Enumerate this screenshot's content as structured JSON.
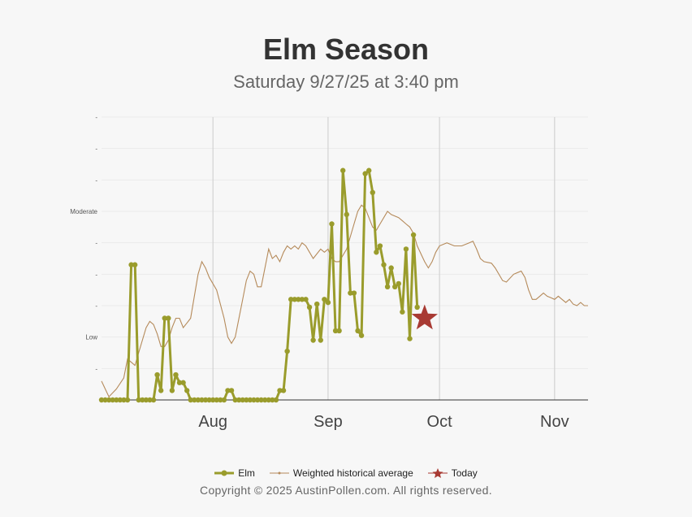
{
  "header": {
    "title": "Elm Season",
    "subtitle": "Saturday 9/27/25 at 3:40 pm"
  },
  "chart_data": {
    "type": "line",
    "x_axis": {
      "labels": [
        "Aug",
        "Sep",
        "Oct",
        "Nov"
      ],
      "label_dates": [
        "2025-08-01",
        "2025-09-01",
        "2025-10-01",
        "2025-11-01"
      ],
      "range": [
        "2025-07-02",
        "2025-11-10"
      ]
    },
    "y_axis": {
      "range": [
        0,
        9
      ],
      "tick_labels": [
        {
          "value": 1,
          "label": "-"
        },
        {
          "value": 2,
          "label": "Low"
        },
        {
          "value": 3,
          "label": "-"
        },
        {
          "value": 4,
          "label": "-"
        },
        {
          "value": 5,
          "label": "-"
        },
        {
          "value": 6,
          "label": "Moderate"
        },
        {
          "value": 7,
          "label": "-"
        },
        {
          "value": 8,
          "label": "-"
        },
        {
          "value": 9,
          "label": "-"
        }
      ]
    },
    "grid": true,
    "legend_position": "bottom",
    "series": [
      {
        "name": "Elm",
        "color": "#9a9c2c",
        "points": [
          [
            "2025-07-02",
            0
          ],
          [
            "2025-07-03",
            0
          ],
          [
            "2025-07-04",
            0
          ],
          [
            "2025-07-05",
            0
          ],
          [
            "2025-07-06",
            0
          ],
          [
            "2025-07-07",
            0
          ],
          [
            "2025-07-08",
            0
          ],
          [
            "2025-07-09",
            0
          ],
          [
            "2025-07-10",
            4.3
          ],
          [
            "2025-07-11",
            4.3
          ],
          [
            "2025-07-12",
            0
          ],
          [
            "2025-07-13",
            0
          ],
          [
            "2025-07-14",
            0
          ],
          [
            "2025-07-15",
            0
          ],
          [
            "2025-07-16",
            0
          ],
          [
            "2025-07-17",
            0.8
          ],
          [
            "2025-07-18",
            0.3
          ],
          [
            "2025-07-19",
            2.6
          ],
          [
            "2025-07-20",
            2.6
          ],
          [
            "2025-07-21",
            0.3
          ],
          [
            "2025-07-22",
            0.8
          ],
          [
            "2025-07-23",
            0.55
          ],
          [
            "2025-07-24",
            0.55
          ],
          [
            "2025-07-25",
            0.3
          ],
          [
            "2025-07-26",
            0
          ],
          [
            "2025-07-27",
            0
          ],
          [
            "2025-07-28",
            0
          ],
          [
            "2025-07-29",
            0
          ],
          [
            "2025-07-30",
            0
          ],
          [
            "2025-07-31",
            0
          ],
          [
            "2025-08-01",
            0
          ],
          [
            "2025-08-02",
            0
          ],
          [
            "2025-08-03",
            0
          ],
          [
            "2025-08-04",
            0
          ],
          [
            "2025-08-05",
            0.3
          ],
          [
            "2025-08-06",
            0.3
          ],
          [
            "2025-08-07",
            0
          ],
          [
            "2025-08-08",
            0
          ],
          [
            "2025-08-09",
            0
          ],
          [
            "2025-08-10",
            0
          ],
          [
            "2025-08-11",
            0
          ],
          [
            "2025-08-12",
            0
          ],
          [
            "2025-08-13",
            0
          ],
          [
            "2025-08-14",
            0
          ],
          [
            "2025-08-15",
            0
          ],
          [
            "2025-08-16",
            0
          ],
          [
            "2025-08-17",
            0
          ],
          [
            "2025-08-18",
            0
          ],
          [
            "2025-08-19",
            0.3
          ],
          [
            "2025-08-20",
            0.3
          ],
          [
            "2025-08-21",
            1.55
          ],
          [
            "2025-08-22",
            3.2
          ],
          [
            "2025-08-23",
            3.2
          ],
          [
            "2025-08-24",
            3.2
          ],
          [
            "2025-08-25",
            3.2
          ],
          [
            "2025-08-26",
            3.2
          ],
          [
            "2025-08-27",
            2.95
          ],
          [
            "2025-08-28",
            1.9
          ],
          [
            "2025-08-29",
            3.05
          ],
          [
            "2025-08-30",
            1.9
          ],
          [
            "2025-08-31",
            3.2
          ],
          [
            "2025-09-01",
            3.1
          ],
          [
            "2025-09-02",
            5.6
          ],
          [
            "2025-09-03",
            2.2
          ],
          [
            "2025-09-04",
            2.2
          ],
          [
            "2025-09-05",
            7.3
          ],
          [
            "2025-09-06",
            5.9
          ],
          [
            "2025-09-07",
            3.4
          ],
          [
            "2025-09-08",
            3.4
          ],
          [
            "2025-09-09",
            2.2
          ],
          [
            "2025-09-10",
            2.05
          ],
          [
            "2025-09-11",
            7.2
          ],
          [
            "2025-09-12",
            7.3
          ],
          [
            "2025-09-13",
            6.6
          ],
          [
            "2025-09-14",
            4.7
          ],
          [
            "2025-09-15",
            4.9
          ],
          [
            "2025-09-16",
            4.3
          ],
          [
            "2025-09-17",
            3.6
          ],
          [
            "2025-09-18",
            4.2
          ],
          [
            "2025-09-19",
            3.6
          ],
          [
            "2025-09-20",
            3.7
          ],
          [
            "2025-09-21",
            2.8
          ],
          [
            "2025-09-22",
            4.8
          ],
          [
            "2025-09-23",
            1.95
          ],
          [
            "2025-09-24",
            5.25
          ],
          [
            "2025-09-25",
            2.95
          ]
        ]
      },
      {
        "name": "Weighted historical average",
        "color": "#b58a5a",
        "points": [
          [
            "2025-07-02",
            0.6
          ],
          [
            "2025-07-04",
            0.1
          ],
          [
            "2025-07-06",
            0.35
          ],
          [
            "2025-07-08",
            0.7
          ],
          [
            "2025-07-09",
            1.3
          ],
          [
            "2025-07-10",
            1.2
          ],
          [
            "2025-07-11",
            1.1
          ],
          [
            "2025-07-12",
            1.5
          ],
          [
            "2025-07-13",
            1.9
          ],
          [
            "2025-07-14",
            2.3
          ],
          [
            "2025-07-15",
            2.5
          ],
          [
            "2025-07-16",
            2.4
          ],
          [
            "2025-07-17",
            2.1
          ],
          [
            "2025-07-18",
            1.7
          ],
          [
            "2025-07-19",
            1.7
          ],
          [
            "2025-07-20",
            1.9
          ],
          [
            "2025-07-21",
            2.3
          ],
          [
            "2025-07-22",
            2.6
          ],
          [
            "2025-07-23",
            2.6
          ],
          [
            "2025-07-24",
            2.3
          ],
          [
            "2025-07-25",
            2.45
          ],
          [
            "2025-07-26",
            2.6
          ],
          [
            "2025-07-27",
            3.3
          ],
          [
            "2025-07-28",
            4.0
          ],
          [
            "2025-07-29",
            4.4
          ],
          [
            "2025-07-30",
            4.2
          ],
          [
            "2025-07-31",
            3.9
          ],
          [
            "2025-08-02",
            3.5
          ],
          [
            "2025-08-04",
            2.6
          ],
          [
            "2025-08-05",
            2.0
          ],
          [
            "2025-08-06",
            1.8
          ],
          [
            "2025-08-07",
            2.0
          ],
          [
            "2025-08-08",
            2.6
          ],
          [
            "2025-08-09",
            3.2
          ],
          [
            "2025-08-10",
            3.8
          ],
          [
            "2025-08-11",
            4.1
          ],
          [
            "2025-08-12",
            4.0
          ],
          [
            "2025-08-13",
            3.6
          ],
          [
            "2025-08-14",
            3.6
          ],
          [
            "2025-08-15",
            4.2
          ],
          [
            "2025-08-16",
            4.8
          ],
          [
            "2025-08-17",
            4.5
          ],
          [
            "2025-08-18",
            4.6
          ],
          [
            "2025-08-19",
            4.4
          ],
          [
            "2025-08-20",
            4.7
          ],
          [
            "2025-08-21",
            4.9
          ],
          [
            "2025-08-22",
            4.8
          ],
          [
            "2025-08-23",
            4.9
          ],
          [
            "2025-08-24",
            4.8
          ],
          [
            "2025-08-25",
            5.0
          ],
          [
            "2025-08-26",
            4.9
          ],
          [
            "2025-08-27",
            4.7
          ],
          [
            "2025-08-28",
            4.5
          ],
          [
            "2025-08-30",
            4.8
          ],
          [
            "2025-08-31",
            4.7
          ],
          [
            "2025-09-01",
            4.8
          ],
          [
            "2025-09-02",
            4.5
          ],
          [
            "2025-09-03",
            4.4
          ],
          [
            "2025-09-04",
            4.4
          ],
          [
            "2025-09-05",
            4.6
          ],
          [
            "2025-09-06",
            4.8
          ],
          [
            "2025-09-07",
            5.2
          ],
          [
            "2025-09-08",
            5.6
          ],
          [
            "2025-09-09",
            6.0
          ],
          [
            "2025-09-10",
            6.2
          ],
          [
            "2025-09-11",
            6.1
          ],
          [
            "2025-09-12",
            5.8
          ],
          [
            "2025-09-13",
            5.5
          ],
          [
            "2025-09-14",
            5.4
          ],
          [
            "2025-09-15",
            5.6
          ],
          [
            "2025-09-17",
            6.0
          ],
          [
            "2025-09-18",
            5.9
          ],
          [
            "2025-09-20",
            5.8
          ],
          [
            "2025-09-21",
            5.7
          ],
          [
            "2025-09-22",
            5.6
          ],
          [
            "2025-09-23",
            5.5
          ],
          [
            "2025-09-24",
            5.3
          ],
          [
            "2025-09-25",
            4.9
          ],
          [
            "2025-09-27",
            4.4
          ],
          [
            "2025-09-28",
            4.2
          ],
          [
            "2025-09-29",
            4.4
          ],
          [
            "2025-09-30",
            4.7
          ],
          [
            "2025-10-01",
            4.9
          ],
          [
            "2025-10-03",
            5.0
          ],
          [
            "2025-10-05",
            4.9
          ],
          [
            "2025-10-07",
            4.9
          ],
          [
            "2025-10-09",
            5.0
          ],
          [
            "2025-10-10",
            5.05
          ],
          [
            "2025-10-11",
            4.8
          ],
          [
            "2025-10-12",
            4.5
          ],
          [
            "2025-10-13",
            4.4
          ],
          [
            "2025-10-15",
            4.35
          ],
          [
            "2025-10-16",
            4.2
          ],
          [
            "2025-10-18",
            3.8
          ],
          [
            "2025-10-19",
            3.75
          ],
          [
            "2025-10-21",
            4.0
          ],
          [
            "2025-10-23",
            4.1
          ],
          [
            "2025-10-24",
            3.9
          ],
          [
            "2025-10-25",
            3.5
          ],
          [
            "2025-10-26",
            3.2
          ],
          [
            "2025-10-27",
            3.2
          ],
          [
            "2025-10-28",
            3.3
          ],
          [
            "2025-10-29",
            3.4
          ],
          [
            "2025-10-30",
            3.3
          ],
          [
            "2025-10-31",
            3.25
          ],
          [
            "2025-11-01",
            3.2
          ],
          [
            "2025-11-02",
            3.3
          ],
          [
            "2025-11-03",
            3.2
          ],
          [
            "2025-11-04",
            3.1
          ],
          [
            "2025-11-05",
            3.2
          ],
          [
            "2025-11-06",
            3.05
          ],
          [
            "2025-11-07",
            3.0
          ],
          [
            "2025-11-08",
            3.1
          ],
          [
            "2025-11-09",
            3.0
          ],
          [
            "2025-11-10",
            3.0
          ]
        ]
      },
      {
        "name": "Today",
        "color": "#a83a33",
        "points": [
          [
            "2025-09-27",
            2.6
          ]
        ]
      }
    ]
  },
  "legend": {
    "items": [
      {
        "label": "Elm",
        "color": "#9a9c2c",
        "icon": "line-dot-marker"
      },
      {
        "label": "Weighted historical average",
        "color": "#b58a5a",
        "icon": "thin-line-marker"
      },
      {
        "label": "Today",
        "color": "#a83a33",
        "icon": "star-icon"
      }
    ]
  },
  "footer": {
    "copyright": "Copyright © 2025 AustinPollen.com.  All rights reserved."
  }
}
